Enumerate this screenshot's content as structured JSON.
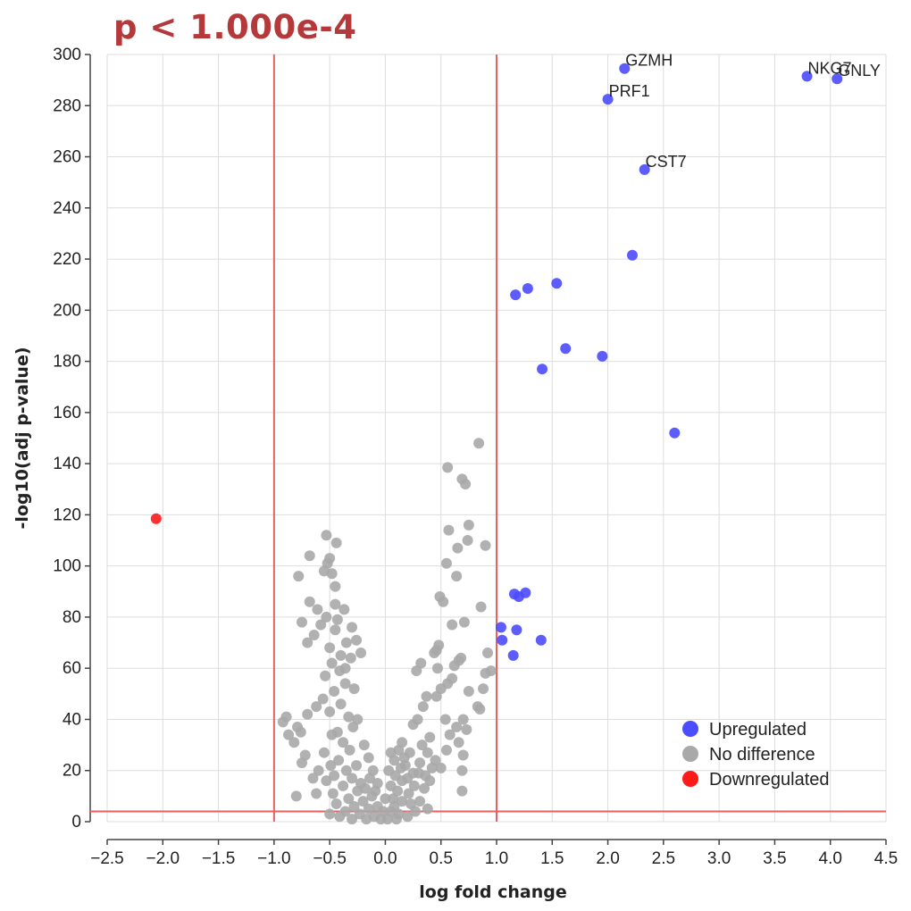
{
  "title": "p < 1.000e-4",
  "chart_data": {
    "type": "scatter",
    "title": "p < 1.000e-4",
    "xlabel": "log fold change",
    "ylabel": "-log10(adj p-value)",
    "xlim": [
      -2.5,
      4.5
    ],
    "ylim": [
      0,
      300
    ],
    "xticks": [
      "−2.5",
      "−2.0",
      "−1.5",
      "−1.0",
      "−0.5",
      "0.0",
      "0.5",
      "1.0",
      "1.5",
      "2.0",
      "2.5",
      "3.0",
      "3.5",
      "4.0",
      "4.5"
    ],
    "xtick_values": [
      -2.5,
      -2.0,
      -1.5,
      -1.0,
      -0.5,
      0.0,
      0.5,
      1.0,
      1.5,
      2.0,
      2.5,
      3.0,
      3.5,
      4.0,
      4.5
    ],
    "yticks": [
      "0",
      "20",
      "40",
      "60",
      "80",
      "100",
      "120",
      "140",
      "160",
      "180",
      "200",
      "220",
      "240",
      "260",
      "280",
      "300"
    ],
    "ytick_values": [
      0,
      20,
      40,
      60,
      80,
      100,
      120,
      140,
      160,
      180,
      200,
      220,
      240,
      260,
      280,
      300
    ],
    "grid": true,
    "thresholds": {
      "x": [
        -1.0,
        1.0
      ],
      "y": 4
    },
    "threshold_color": "#e8605f",
    "legend_position": "bottom-right",
    "colors": {
      "Upregulated": "#4b4bff",
      "No difference": "#a9a9a9",
      "Downregulated": "#ff1a1a"
    },
    "legend": [
      "Upregulated",
      "No difference",
      "Downregulated"
    ],
    "series": [
      {
        "name": "Upregulated",
        "points": [
          {
            "x": 2.15,
            "y": 294.5,
            "label": "GZMH"
          },
          {
            "x": 2.0,
            "y": 282.5,
            "label": "PRF1"
          },
          {
            "x": 3.79,
            "y": 291.5,
            "label": "NKG7"
          },
          {
            "x": 4.06,
            "y": 290.5,
            "label": "GNLY"
          },
          {
            "x": 2.33,
            "y": 255,
            "label": "CST7"
          },
          {
            "x": 2.22,
            "y": 221.5
          },
          {
            "x": 1.54,
            "y": 210.5
          },
          {
            "x": 1.28,
            "y": 208.5
          },
          {
            "x": 1.17,
            "y": 206
          },
          {
            "x": 1.62,
            "y": 185
          },
          {
            "x": 1.95,
            "y": 182
          },
          {
            "x": 1.41,
            "y": 177
          },
          {
            "x": 2.6,
            "y": 152
          },
          {
            "x": 1.26,
            "y": 89.5
          },
          {
            "x": 1.16,
            "y": 89
          },
          {
            "x": 1.2,
            "y": 88
          },
          {
            "x": 1.04,
            "y": 76
          },
          {
            "x": 1.18,
            "y": 75
          },
          {
            "x": 1.05,
            "y": 71
          },
          {
            "x": 1.4,
            "y": 71
          },
          {
            "x": 1.15,
            "y": 65
          }
        ]
      },
      {
        "name": "No difference",
        "points": [
          {
            "x": 0.84,
            "y": 148
          },
          {
            "x": 0.56,
            "y": 138.5
          },
          {
            "x": 0.69,
            "y": 134
          },
          {
            "x": 0.72,
            "y": 132
          },
          {
            "x": 0.75,
            "y": 116
          },
          {
            "x": 0.57,
            "y": 114
          },
          {
            "x": 0.74,
            "y": 110
          },
          {
            "x": 0.9,
            "y": 108
          },
          {
            "x": 0.65,
            "y": 107
          },
          {
            "x": 0.55,
            "y": 101
          },
          {
            "x": 0.64,
            "y": 96
          },
          {
            "x": 0.49,
            "y": 88
          },
          {
            "x": 0.52,
            "y": 86
          },
          {
            "x": 0.86,
            "y": 84
          },
          {
            "x": 0.71,
            "y": 78
          },
          {
            "x": 0.6,
            "y": 77
          },
          {
            "x": 0.92,
            "y": 66
          },
          {
            "x": 0.9,
            "y": 58
          },
          {
            "x": 0.95,
            "y": 59
          },
          {
            "x": 0.88,
            "y": 52
          },
          {
            "x": 0.75,
            "y": 51
          },
          {
            "x": 0.83,
            "y": 45
          },
          {
            "x": 0.85,
            "y": 44
          },
          {
            "x": 0.68,
            "y": 64
          },
          {
            "x": 0.66,
            "y": 63
          },
          {
            "x": 0.62,
            "y": 61
          },
          {
            "x": 0.6,
            "y": 56
          },
          {
            "x": 0.56,
            "y": 54
          },
          {
            "x": 0.48,
            "y": 69
          },
          {
            "x": 0.46,
            "y": 67
          },
          {
            "x": 0.44,
            "y": 66
          },
          {
            "x": 0.32,
            "y": 62
          },
          {
            "x": 0.28,
            "y": 59
          },
          {
            "x": 0.47,
            "y": 60
          },
          {
            "x": 0.5,
            "y": 52
          },
          {
            "x": 0.46,
            "y": 49
          },
          {
            "x": 0.54,
            "y": 40
          },
          {
            "x": 0.7,
            "y": 40
          },
          {
            "x": 0.73,
            "y": 36
          },
          {
            "x": 0.64,
            "y": 37
          },
          {
            "x": 0.58,
            "y": 34
          },
          {
            "x": 0.66,
            "y": 31
          },
          {
            "x": 0.7,
            "y": 26
          },
          {
            "x": 0.55,
            "y": 28
          },
          {
            "x": 0.69,
            "y": 20
          },
          {
            "x": 0.69,
            "y": 12
          },
          {
            "x": 0.5,
            "y": 21
          },
          {
            "x": 0.45,
            "y": 24
          },
          {
            "x": 0.37,
            "y": 49
          },
          {
            "x": 0.34,
            "y": 45
          },
          {
            "x": 0.29,
            "y": 40
          },
          {
            "x": 0.25,
            "y": 38
          },
          {
            "x": 0.4,
            "y": 33
          },
          {
            "x": 0.33,
            "y": 30
          },
          {
            "x": 0.38,
            "y": 27
          },
          {
            "x": 0.22,
            "y": 27
          },
          {
            "x": 0.18,
            "y": 22
          },
          {
            "x": 0.3,
            "y": 19
          },
          {
            "x": 0.4,
            "y": 16
          },
          {
            "x": 0.35,
            "y": 13
          },
          {
            "x": 0.26,
            "y": 14
          },
          {
            "x": 0.21,
            "y": 11
          },
          {
            "x": 0.15,
            "y": 16
          },
          {
            "x": 0.11,
            "y": 12
          },
          {
            "x": 0.07,
            "y": 9
          },
          {
            "x": 0.15,
            "y": 8
          },
          {
            "x": 0.23,
            "y": 7
          },
          {
            "x": 0.31,
            "y": 8
          },
          {
            "x": 0.38,
            "y": 5
          },
          {
            "x": 0.05,
            "y": 4
          },
          {
            "x": 0.12,
            "y": 3
          },
          {
            "x": 0.2,
            "y": 2
          },
          {
            "x": 0.02,
            "y": 1
          },
          {
            "x": 0.08,
            "y": 6
          },
          {
            "x": 0.1,
            "y": 1
          },
          {
            "x": 0.27,
            "y": 4
          },
          {
            "x": 0.05,
            "y": 14
          },
          {
            "x": 0.09,
            "y": 18
          },
          {
            "x": 0.17,
            "y": 25
          },
          {
            "x": 0.12,
            "y": 28
          },
          {
            "x": 0.0,
            "y": 9
          },
          {
            "x": -0.02,
            "y": 4
          },
          {
            "x": -0.04,
            "y": 1
          },
          {
            "x": -0.07,
            "y": 6
          },
          {
            "x": -0.1,
            "y": 2
          },
          {
            "x": -0.12,
            "y": 10
          },
          {
            "x": -0.15,
            "y": 5
          },
          {
            "x": -0.17,
            "y": 1
          },
          {
            "x": -0.2,
            "y": 8
          },
          {
            "x": -0.23,
            "y": 3
          },
          {
            "x": -0.25,
            "y": 12
          },
          {
            "x": -0.28,
            "y": 6
          },
          {
            "x": -0.3,
            "y": 1
          },
          {
            "x": -0.33,
            "y": 9
          },
          {
            "x": -0.36,
            "y": 4
          },
          {
            "x": -0.38,
            "y": 14
          },
          {
            "x": -0.41,
            "y": 2
          },
          {
            "x": -0.44,
            "y": 7
          },
          {
            "x": -0.47,
            "y": 11
          },
          {
            "x": -0.5,
            "y": 3
          },
          {
            "x": -0.53,
            "y": 16
          },
          {
            "x": -0.49,
            "y": 22
          },
          {
            "x": -0.46,
            "y": 18
          },
          {
            "x": -0.42,
            "y": 24
          },
          {
            "x": -0.35,
            "y": 20
          },
          {
            "x": -0.3,
            "y": 17
          },
          {
            "x": -0.26,
            "y": 22
          },
          {
            "x": -0.22,
            "y": 15
          },
          {
            "x": -0.18,
            "y": 13
          },
          {
            "x": -0.14,
            "y": 17
          },
          {
            "x": -0.09,
            "y": 12
          },
          {
            "x": -0.32,
            "y": 28
          },
          {
            "x": -0.38,
            "y": 31
          },
          {
            "x": -0.43,
            "y": 35
          },
          {
            "x": -0.48,
            "y": 34
          },
          {
            "x": -0.55,
            "y": 27
          },
          {
            "x": -0.6,
            "y": 20
          },
          {
            "x": -0.65,
            "y": 17
          },
          {
            "x": -0.62,
            "y": 11
          },
          {
            "x": -0.72,
            "y": 26
          },
          {
            "x": -0.75,
            "y": 23
          },
          {
            "x": -0.8,
            "y": 10
          },
          {
            "x": -0.82,
            "y": 31
          },
          {
            "x": -0.87,
            "y": 34
          },
          {
            "x": -0.92,
            "y": 39
          },
          {
            "x": -0.89,
            "y": 41
          },
          {
            "x": -0.79,
            "y": 37
          },
          {
            "x": -0.76,
            "y": 35
          },
          {
            "x": -0.7,
            "y": 42
          },
          {
            "x": -0.62,
            "y": 45
          },
          {
            "x": -0.56,
            "y": 48
          },
          {
            "x": -0.5,
            "y": 43
          },
          {
            "x": -0.46,
            "y": 51
          },
          {
            "x": -0.4,
            "y": 46
          },
          {
            "x": -0.36,
            "y": 54
          },
          {
            "x": -0.33,
            "y": 41
          },
          {
            "x": -0.29,
            "y": 37
          },
          {
            "x": -0.25,
            "y": 40
          },
          {
            "x": -0.41,
            "y": 59
          },
          {
            "x": -0.48,
            "y": 62
          },
          {
            "x": -0.54,
            "y": 57
          },
          {
            "x": -0.4,
            "y": 65
          },
          {
            "x": -0.35,
            "y": 70
          },
          {
            "x": -0.45,
            "y": 75
          },
          {
            "x": -0.5,
            "y": 68
          },
          {
            "x": -0.43,
            "y": 79
          },
          {
            "x": -0.37,
            "y": 83
          },
          {
            "x": -0.3,
            "y": 76
          },
          {
            "x": -0.26,
            "y": 71
          },
          {
            "x": -0.22,
            "y": 66
          },
          {
            "x": -0.45,
            "y": 85
          },
          {
            "x": -0.53,
            "y": 80
          },
          {
            "x": -0.61,
            "y": 83
          },
          {
            "x": -0.68,
            "y": 86
          },
          {
            "x": -0.75,
            "y": 78
          },
          {
            "x": -0.7,
            "y": 70
          },
          {
            "x": -0.64,
            "y": 73
          },
          {
            "x": -0.58,
            "y": 77
          },
          {
            "x": -0.48,
            "y": 97
          },
          {
            "x": -0.52,
            "y": 101
          },
          {
            "x": -0.5,
            "y": 103
          },
          {
            "x": -0.55,
            "y": 98
          },
          {
            "x": -0.44,
            "y": 109
          },
          {
            "x": -0.53,
            "y": 112
          },
          {
            "x": -0.68,
            "y": 104
          },
          {
            "x": -0.78,
            "y": 96
          },
          {
            "x": -0.45,
            "y": 92
          },
          {
            "x": -0.36,
            "y": 60
          },
          {
            "x": -0.31,
            "y": 64
          },
          {
            "x": -0.28,
            "y": 52
          },
          {
            "x": -0.19,
            "y": 30
          },
          {
            "x": -0.15,
            "y": 25
          },
          {
            "x": -0.11,
            "y": 20
          },
          {
            "x": -0.07,
            "y": 15
          },
          {
            "x": 0.03,
            "y": 20
          },
          {
            "x": 0.08,
            "y": 24
          },
          {
            "x": 0.14,
            "y": 21
          },
          {
            "x": 0.2,
            "y": 17
          },
          {
            "x": 0.25,
            "y": 19
          },
          {
            "x": 0.31,
            "y": 23
          },
          {
            "x": 0.36,
            "y": 18
          },
          {
            "x": 0.42,
            "y": 21
          },
          {
            "x": 0.05,
            "y": 27
          },
          {
            "x": 0.15,
            "y": 31
          }
        ]
      },
      {
        "name": "Downregulated",
        "points": [
          {
            "x": -2.06,
            "y": 118.5
          }
        ]
      }
    ]
  }
}
